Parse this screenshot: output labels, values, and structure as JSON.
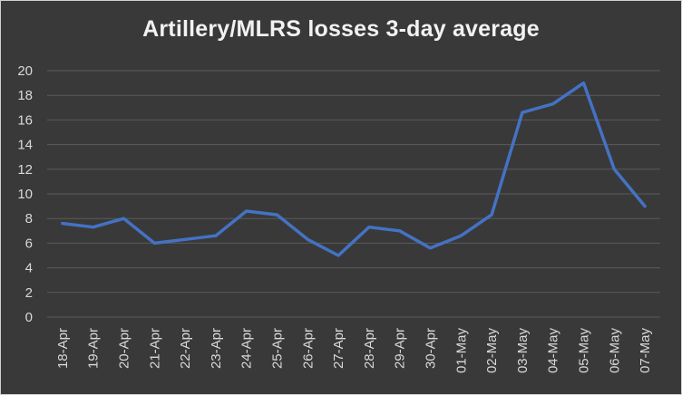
{
  "chart_data": {
    "type": "line",
    "title": "Artillery/MLRS  losses 3-day average",
    "xlabel": "",
    "ylabel": "",
    "ylim": [
      0,
      20
    ],
    "yticks": [
      0,
      2,
      4,
      6,
      8,
      10,
      12,
      14,
      16,
      18,
      20
    ],
    "grid": true,
    "categories": [
      "18-Apr",
      "19-Apr",
      "20-Apr",
      "21-Apr",
      "22-Apr",
      "23-Apr",
      "24-Apr",
      "25-Apr",
      "26-Apr",
      "27-Apr",
      "28-Apr",
      "29-Apr",
      "30-Apr",
      "01-May",
      "02-May",
      "03-May",
      "04-May",
      "05-May",
      "06-May",
      "07-May"
    ],
    "series": [
      {
        "name": "Artillery/MLRS losses 3-day average",
        "color": "#4472c4",
        "values": [
          7.6,
          7.3,
          8.0,
          6.0,
          6.3,
          6.6,
          8.6,
          8.3,
          6.3,
          5.0,
          7.3,
          7.0,
          5.6,
          6.6,
          8.3,
          16.6,
          17.3,
          19.0,
          12.0,
          9.0
        ]
      }
    ]
  }
}
